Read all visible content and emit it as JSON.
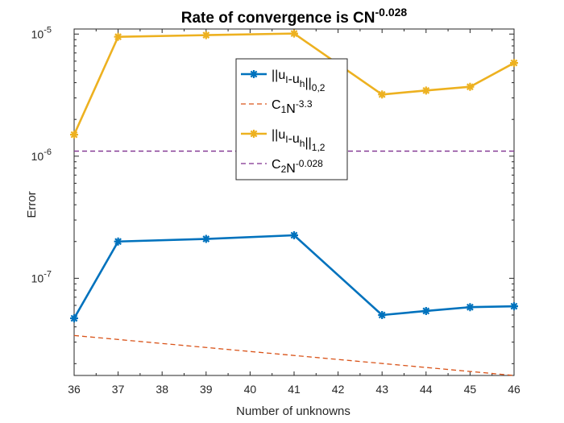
{
  "chart_data": {
    "type": "line",
    "title": {
      "base": "Rate of convergence is CN",
      "sup": "-0.028"
    },
    "xlabel": "Number of unknowns",
    "ylabel": "Error",
    "xlim": [
      36,
      46
    ],
    "ylim": [
      1.6e-08,
      1.1e-05
    ],
    "yscale": "log",
    "grid": false,
    "legend_position": "top-center",
    "x_ticks": [
      36,
      37,
      38,
      39,
      40,
      41,
      42,
      43,
      44,
      45,
      46
    ],
    "y_ticks": [
      {
        "value": 1e-07,
        "base": "10",
        "sup": "-7"
      },
      {
        "value": 1e-06,
        "base": "10",
        "sup": "-6"
      },
      {
        "value": 1e-05,
        "base": "10",
        "sup": "-5"
      }
    ],
    "series": [
      {
        "legend": [
          {
            "t": "||u"
          },
          {
            "t": "I",
            "sub": true
          },
          {
            "t": "-u"
          },
          {
            "t": "h",
            "sub": true
          },
          {
            "t": "||"
          },
          {
            "t": "0,2",
            "sub": true
          }
        ],
        "color": "#0072BD",
        "style": "solid-marker",
        "x": [
          36,
          37,
          39,
          41,
          43,
          44,
          45,
          46
        ],
        "y": [
          4.7e-08,
          2e-07,
          2.1e-07,
          2.25e-07,
          5e-08,
          5.4e-08,
          5.8e-08,
          5.9e-08
        ]
      },
      {
        "legend": [
          {
            "t": "C"
          },
          {
            "t": "1",
            "sub": true
          },
          {
            "t": "N"
          },
          {
            "t": "-3.3",
            "sup": true
          }
        ],
        "color": "#D95319",
        "style": "dashed",
        "x": [
          36,
          46
        ],
        "y": [
          3.4e-08,
          1.6e-08
        ]
      },
      {
        "legend": [
          {
            "t": "||u"
          },
          {
            "t": "I",
            "sub": true
          },
          {
            "t": "-u"
          },
          {
            "t": "h",
            "sub": true
          },
          {
            "t": "||"
          },
          {
            "t": "1,2",
            "sub": true
          }
        ],
        "color": "#EDB120",
        "style": "solid-marker",
        "x": [
          36,
          37,
          39,
          41,
          43,
          44,
          45,
          46
        ],
        "y": [
          1.5e-06,
          9.5e-06,
          9.8e-06,
          1.01e-05,
          3.2e-06,
          3.45e-06,
          3.7e-06,
          5.8e-06
        ]
      },
      {
        "legend": [
          {
            "t": "C"
          },
          {
            "t": "2",
            "sub": true
          },
          {
            "t": "N"
          },
          {
            "t": "-0.028",
            "sup": true
          }
        ],
        "color": "#7E2F8E",
        "style": "dashed",
        "x": [
          36,
          46
        ],
        "y": [
          1.1e-06,
          1.1e-06
        ]
      }
    ]
  }
}
